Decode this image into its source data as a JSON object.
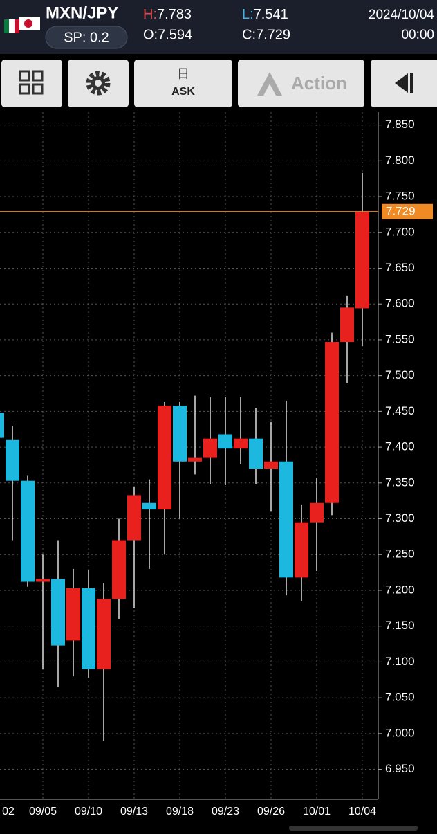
{
  "header": {
    "symbol": "MXN/JPY",
    "spread": "SP: 0.2",
    "high_label": "H:",
    "high": "7.783",
    "open": "O:7.594",
    "low_label": "L:",
    "low": "7.541",
    "close": "C:7.729",
    "date": "2024/10/04",
    "time": "00:00"
  },
  "toolbar": {
    "ask_icon": "日",
    "ask": "ASK",
    "action": "Action"
  },
  "chart_data": {
    "type": "candlestick",
    "up_color": "#e8201e",
    "down_color": "#1cb8e0",
    "current_price": 7.729,
    "current_color": "#f08a24",
    "grid": true,
    "categories": [
      "02",
      null,
      null,
      "09/05",
      null,
      null,
      "09/10",
      null,
      null,
      "09/13",
      null,
      null,
      "09/18",
      null,
      null,
      "09/23",
      null,
      null,
      "09/26",
      null,
      null,
      "10/01",
      null,
      null,
      "10/04"
    ],
    "open": [
      7.448,
      7.41,
      7.353,
      7.212,
      7.216,
      7.13,
      7.203,
      7.09,
      7.188,
      7.27,
      7.322,
      7.313,
      7.458,
      7.38,
      7.385,
      7.418,
      7.398,
      7.412,
      7.37,
      7.38,
      7.218,
      7.295,
      7.322,
      7.547,
      7.594
    ],
    "high": [
      7.46,
      7.43,
      7.36,
      7.25,
      7.27,
      7.23,
      7.228,
      7.21,
      7.3,
      7.345,
      7.355,
      7.463,
      7.463,
      7.472,
      7.47,
      7.47,
      7.47,
      7.455,
      7.435,
      7.465,
      7.32,
      7.357,
      7.56,
      7.612,
      7.783
    ],
    "low": [
      7.4,
      7.27,
      7.205,
      7.09,
      7.065,
      7.08,
      7.078,
      6.99,
      7.16,
      7.175,
      7.23,
      7.25,
      7.3,
      7.362,
      7.348,
      7.347,
      7.376,
      7.348,
      7.31,
      7.193,
      7.185,
      7.227,
      7.305,
      7.49,
      7.541
    ],
    "close": [
      7.413,
      7.353,
      7.212,
      7.216,
      7.123,
      7.203,
      7.09,
      7.188,
      7.27,
      7.333,
      7.313,
      7.458,
      7.38,
      7.385,
      7.412,
      7.398,
      7.412,
      7.37,
      7.38,
      7.218,
      7.295,
      7.322,
      7.547,
      7.595,
      7.729
    ],
    "ylim": [
      6.908,
      7.868
    ],
    "yticks": [
      {
        "value": 6.95,
        "label": "6.950"
      },
      {
        "value": 7.0,
        "label": "7.000"
      },
      {
        "value": 7.05,
        "label": "7.050"
      },
      {
        "value": 7.1,
        "label": "7.100"
      },
      {
        "value": 7.15,
        "label": "7.150"
      },
      {
        "value": 7.2,
        "label": "7.200"
      },
      {
        "value": 7.25,
        "label": "7.250"
      },
      {
        "value": 7.3,
        "label": "7.300"
      },
      {
        "value": 7.35,
        "label": "7.350"
      },
      {
        "value": 7.4,
        "label": "7.400"
      },
      {
        "value": 7.45,
        "label": "7.450"
      },
      {
        "value": 7.5,
        "label": "7.500"
      },
      {
        "value": 7.55,
        "label": "7.550"
      },
      {
        "value": 7.6,
        "label": "7.600"
      },
      {
        "value": 7.65,
        "label": "7.650"
      },
      {
        "value": 7.7,
        "label": "7.700"
      },
      {
        "value": 7.75,
        "label": "7.750"
      },
      {
        "value": 7.8,
        "label": "7.800"
      },
      {
        "value": 7.85,
        "label": "7.850"
      }
    ]
  }
}
